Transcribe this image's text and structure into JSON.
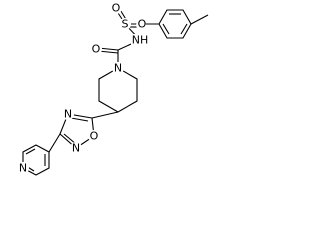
{
  "atoms": [
    {
      "label": "O"
    },
    {
      "label": "NH"
    },
    {
      "label": "S"
    },
    {
      "label": "O"
    },
    {
      "label": "O"
    },
    {
      "label": "N"
    },
    {
      "label": "N"
    },
    {
      "label": "O"
    },
    {
      "label": "N"
    },
    {
      "label": "N"
    }
  ]
}
